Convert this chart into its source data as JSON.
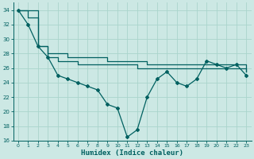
{
  "xlabel": "Humidex (Indice chaleur)",
  "background_color": "#cce8e4",
  "grid_color": "#aad4cc",
  "line_color": "#006060",
  "xlim": [
    -0.5,
    23.5
  ],
  "ylim": [
    16,
    35
  ],
  "yticks": [
    16,
    18,
    20,
    22,
    24,
    26,
    28,
    30,
    32,
    34
  ],
  "xticks": [
    0,
    1,
    2,
    3,
    4,
    5,
    6,
    7,
    8,
    9,
    10,
    11,
    12,
    13,
    14,
    15,
    16,
    17,
    18,
    19,
    20,
    21,
    22,
    23
  ],
  "line1_x": [
    0,
    1,
    2,
    3,
    4,
    5,
    6,
    7,
    8,
    9,
    10,
    11,
    12,
    13,
    14,
    15,
    16,
    17,
    18,
    19,
    20,
    21,
    22,
    23
  ],
  "line1_y": [
    34,
    32,
    29,
    27.5,
    25,
    24.5,
    24,
    23.5,
    23,
    21,
    20.5,
    16.5,
    17.5,
    22,
    24.5,
    25.5,
    24,
    23.5,
    24.5,
    27,
    26.5,
    26,
    26.5,
    25
  ],
  "line2_x": [
    0,
    2,
    3,
    4,
    5,
    6,
    7,
    8,
    9,
    10,
    11,
    12,
    13,
    14,
    15,
    16,
    17,
    18,
    19,
    20,
    21,
    22,
    23
  ],
  "line2_y": [
    34,
    29,
    28,
    28,
    27.5,
    27.5,
    27.5,
    27.5,
    27,
    27,
    27,
    27,
    26.5,
    26.5,
    26.5,
    26.5,
    26.5,
    26.5,
    26.5,
    26.5,
    26.5,
    26.5,
    25.5
  ],
  "line3_x": [
    0,
    1,
    2,
    3,
    4,
    5,
    6,
    7,
    8,
    9,
    10,
    11,
    12,
    13,
    14,
    15,
    16,
    17,
    18,
    19,
    20,
    21,
    22,
    23
  ],
  "line3_y": [
    34,
    33,
    29,
    27.5,
    27,
    27,
    26.5,
    26.5,
    26.5,
    26.5,
    26.5,
    26.5,
    26,
    26,
    26,
    26,
    26,
    26,
    26,
    26,
    26,
    26,
    26,
    25.5
  ]
}
